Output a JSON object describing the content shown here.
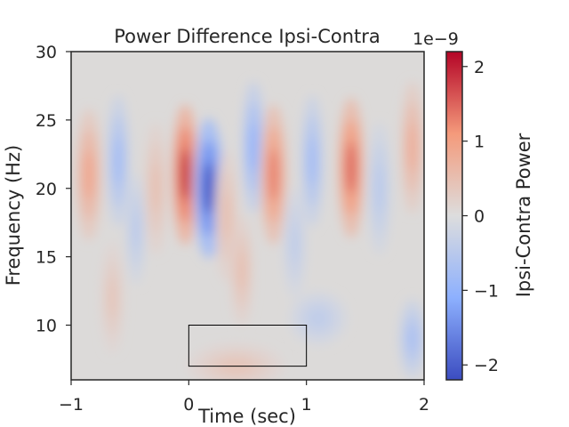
{
  "chart_data": {
    "type": "heatmap",
    "title": "Power Difference Ipsi-Contra",
    "xlabel": "Time (sec)",
    "ylabel": "Frequency (Hz)",
    "xlim": [
      -1,
      2
    ],
    "ylim": [
      6,
      30
    ],
    "xticks": [
      "−1",
      "0",
      "1",
      "2"
    ],
    "xtick_values": [
      -1,
      0,
      1,
      2
    ],
    "yticks": [
      "10",
      "15",
      "20",
      "25",
      "30"
    ],
    "ytick_values": [
      10,
      15,
      20,
      25,
      30
    ],
    "colorbar": {
      "label": "Ipsi-Contra Power",
      "offset_text": "1e−9",
      "range": [
        -2.2,
        2.2
      ],
      "ticks": [
        "−2",
        "−1",
        "0",
        "1",
        "2"
      ],
      "tick_values": [
        -2,
        -1,
        0,
        1,
        2
      ],
      "colormap": "coolwarm",
      "colors": [
        "#3b4cc0",
        "#8db0fe",
        "#dddddd",
        "#f49a7b",
        "#b40426"
      ]
    },
    "components": [
      {
        "t": -0.03,
        "f": 21,
        "a": 1.9,
        "st": 0.07,
        "sf": 3.2
      },
      {
        "t": 0.17,
        "f": 20,
        "a": -2.1,
        "st": 0.08,
        "sf": 3.2
      },
      {
        "t": 0.55,
        "f": 23,
        "a": -1.0,
        "st": 0.06,
        "sf": 3.0
      },
      {
        "t": 0.72,
        "f": 21,
        "a": 1.3,
        "st": 0.07,
        "sf": 3.2
      },
      {
        "t": 1.38,
        "f": 21.5,
        "a": 1.5,
        "st": 0.07,
        "sf": 3.2
      },
      {
        "t": 1.05,
        "f": 22,
        "a": -0.8,
        "st": 0.06,
        "sf": 3.0
      },
      {
        "t": -0.85,
        "f": 21,
        "a": 0.9,
        "st": 0.07,
        "sf": 3.0
      },
      {
        "t": -0.6,
        "f": 22,
        "a": -0.8,
        "st": 0.06,
        "sf": 3.0
      },
      {
        "t": -0.28,
        "f": 20,
        "a": 0.5,
        "st": 0.06,
        "sf": 3.0
      },
      {
        "t": 0.32,
        "f": 18,
        "a": 0.5,
        "st": 0.06,
        "sf": 3.0
      },
      {
        "t": 1.9,
        "f": 23,
        "a": 0.8,
        "st": 0.06,
        "sf": 3.0
      },
      {
        "t": 1.62,
        "f": 20,
        "a": -0.5,
        "st": 0.06,
        "sf": 3.0
      },
      {
        "t": 1.9,
        "f": 9,
        "a": -0.7,
        "st": 0.07,
        "sf": 1.8
      },
      {
        "t": 1.1,
        "f": 10.5,
        "a": -0.4,
        "st": 0.15,
        "sf": 1.2
      },
      {
        "t": 0.4,
        "f": 7,
        "a": 0.4,
        "st": 0.25,
        "sf": 1.0
      },
      {
        "t": -0.65,
        "f": 12,
        "a": 0.4,
        "st": 0.06,
        "sf": 2.5
      },
      {
        "t": 0.45,
        "f": 14,
        "a": 0.5,
        "st": 0.06,
        "sf": 2.5
      },
      {
        "t": 0.9,
        "f": 16,
        "a": -0.4,
        "st": 0.06,
        "sf": 2.5
      },
      {
        "t": -0.45,
        "f": 17,
        "a": -0.5,
        "st": 0.05,
        "sf": 2.5
      }
    ],
    "annotation_box": {
      "time": [
        0,
        1
      ],
      "freq": [
        7,
        10
      ]
    }
  }
}
